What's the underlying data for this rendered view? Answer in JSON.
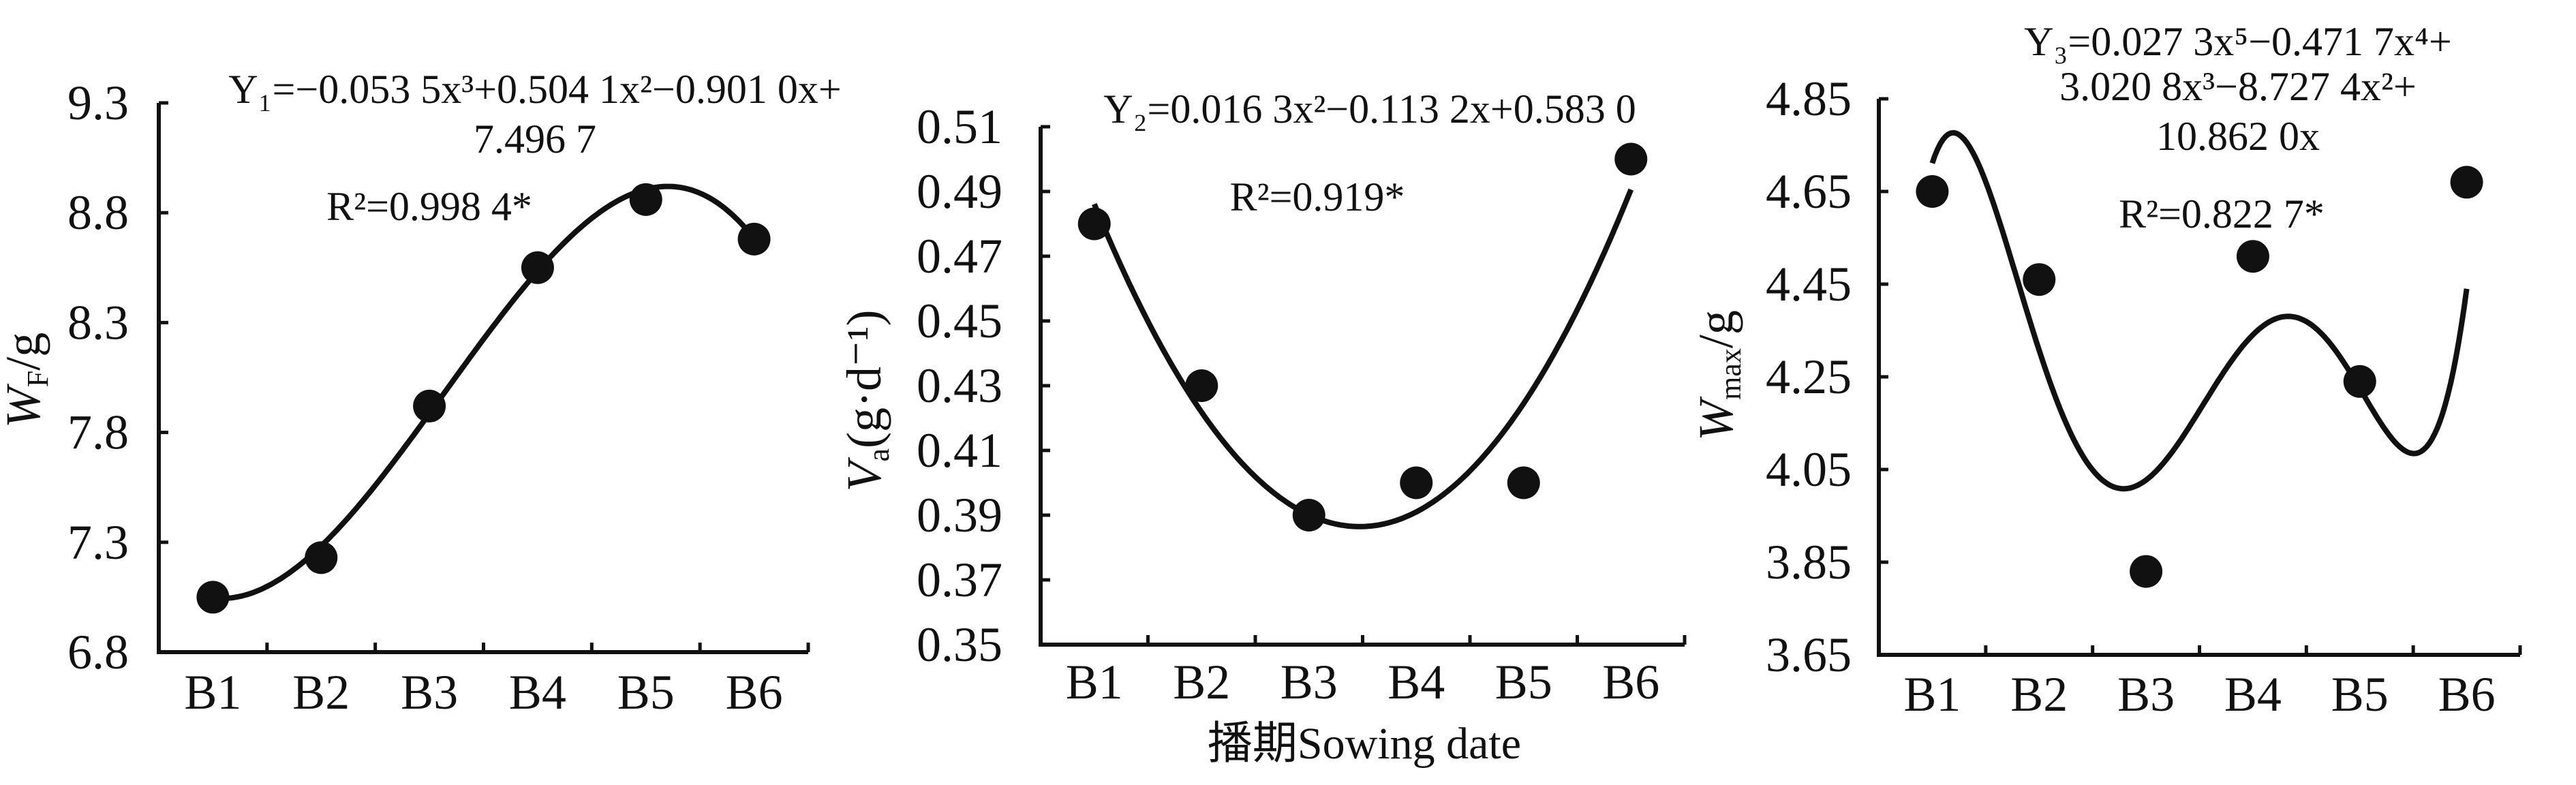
{
  "chart_data": [
    {
      "type": "scatter",
      "categories": [
        "B1",
        "B2",
        "B3",
        "B4",
        "B5",
        "B6"
      ],
      "values": [
        7.05,
        7.23,
        7.92,
        8.55,
        8.86,
        8.68
      ],
      "ylabel": {
        "main": "W",
        "sub": "F",
        "unit": "/g"
      },
      "ylim": [
        6.8,
        9.3
      ],
      "yticks": [
        "6.8",
        "7.3",
        "7.8",
        "8.3",
        "8.8",
        "9.3"
      ],
      "fit_coefficients_descending": [
        -0.0535,
        0.5041,
        -0.901,
        7.4967
      ],
      "equation_lines": [
        "Y₁=−0.053 5x³+0.504 1x²−0.901 0x+",
        "7.496 7"
      ],
      "r2_text": "R²=0.998 4*",
      "grid": false
    },
    {
      "type": "scatter",
      "categories": [
        "B1",
        "B2",
        "B3",
        "B4",
        "B5",
        "B6"
      ],
      "values": [
        0.48,
        0.43,
        0.39,
        0.4,
        0.4,
        0.5
      ],
      "ylabel": {
        "main": "V",
        "sub": "a",
        "unit": "(g·d⁻¹)"
      },
      "xlabel": "播期Sowing date",
      "ylim": [
        0.35,
        0.51
      ],
      "yticks": [
        "0.35",
        "0.37",
        "0.39",
        "0.41",
        "0.43",
        "0.45",
        "0.47",
        "0.49",
        "0.51"
      ],
      "fit_coefficients_descending": [
        0.0163,
        -0.1132,
        0.583
      ],
      "equation_lines": [
        "Y₂=0.016 3x²−0.113 2x+0.583 0"
      ],
      "r2_text": "R²=0.919*",
      "grid": false
    },
    {
      "type": "scatter",
      "categories": [
        "B1",
        "B2",
        "B3",
        "B4",
        "B5",
        "B6"
      ],
      "values": [
        4.65,
        4.46,
        3.83,
        4.51,
        4.24,
        4.67
      ],
      "ylabel": {
        "main": "W",
        "sub": "max",
        "unit": "/g"
      },
      "ylim": [
        3.65,
        4.85
      ],
      "yticks": [
        "3.65",
        "3.85",
        "4.05",
        "4.25",
        "4.45",
        "4.65",
        "4.85"
      ],
      "fit_coefficients_descending": [
        0.0273,
        -0.4717,
        3.0208,
        -8.7274,
        10.862,
        0
      ],
      "equation_lines": [
        "Y₃=0.027 3x⁵−0.471 7x⁴+",
        "3.020 8x³−8.727 4x²+",
        "10.862 0x"
      ],
      "r2_text": "R²=0.822 7*",
      "grid": false
    }
  ]
}
